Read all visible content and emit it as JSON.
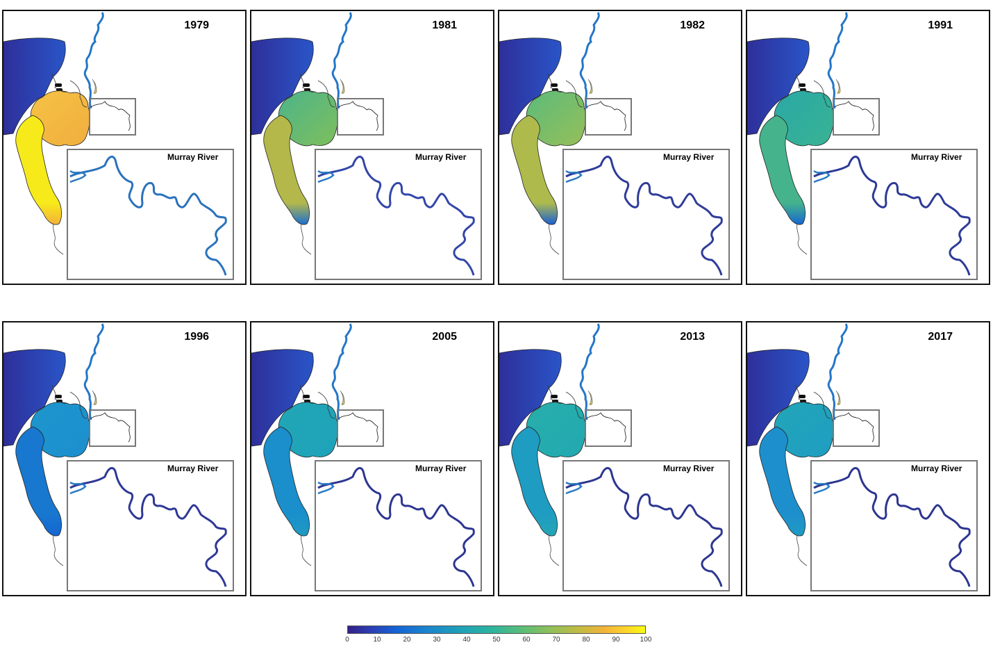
{
  "inset_label": "Murray River",
  "panels": [
    {
      "year": "1979",
      "lake": "#f0ae3e",
      "lake2": "#f6c245",
      "coorong": "#f7ea1a",
      "coorong_end": "#f3b23a",
      "channel": "#2476c8",
      "inset_river": "#2a72bc"
    },
    {
      "year": "1981",
      "lake": "#7ebf5c",
      "lake2": "#4cb48a",
      "coorong": "#b4b84a",
      "coorong_end": "#1b6fd0",
      "channel": "#2476c8",
      "inset_river": "#3346a8"
    },
    {
      "year": "1982",
      "lake": "#96bf58",
      "lake2": "#5bbb7c",
      "coorong": "#aebb4c",
      "coorong_end": "#1b5fd3",
      "channel": "#2476c8",
      "inset_river": "#2f3c98"
    },
    {
      "year": "1991",
      "lake": "#39b394",
      "lake2": "#2aa8a6",
      "coorong": "#45b38c",
      "coorong_end": "#1768d1",
      "channel": "#2476c8",
      "inset_river": "#2d3a96"
    },
    {
      "year": "1996",
      "lake": "#1b8fcf",
      "lake2": "#1e96cc",
      "coorong": "#1877cf",
      "coorong_end": "#1566d2",
      "channel": "#2476c8",
      "inset_river": "#2f3896"
    },
    {
      "year": "2005",
      "lake": "#1ea3bb",
      "lake2": "#21a6b5",
      "coorong": "#1a8fcc",
      "coorong_end": "#1f9ac2",
      "channel": "#2476c8",
      "inset_river": "#2d3690"
    },
    {
      "year": "2013",
      "lake": "#22a9b1",
      "lake2": "#27aeaa",
      "coorong": "#1f9cc2",
      "coorong_end": "#24a6b6",
      "channel": "#2476c8",
      "inset_river": "#2d3690"
    },
    {
      "year": "2017",
      "lake": "#1f9dc2",
      "lake2": "#22a6b8",
      "coorong": "#1e8fcd",
      "coorong_end": "#1e9bc5",
      "channel": "#2476c8",
      "inset_river": "#2d3690"
    }
  ],
  "colorbar": {
    "ticks": [
      "0",
      "10",
      "20",
      "30",
      "40",
      "50",
      "60",
      "70",
      "80",
      "90",
      "100"
    ],
    "min": 0,
    "max": 100
  }
}
